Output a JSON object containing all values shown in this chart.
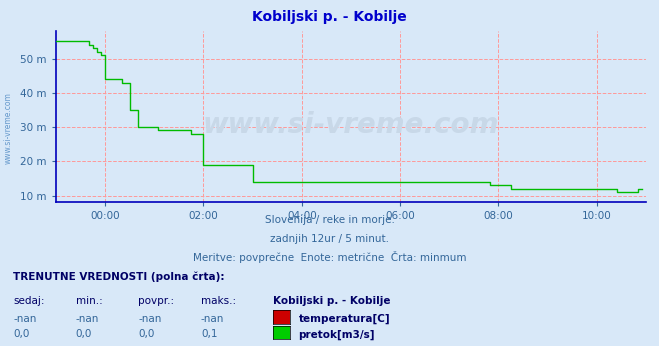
{
  "title": "Kobiljski p. - Kobilje",
  "title_color": "#0000cc",
  "bg_color": "#d8e8f8",
  "plot_bg_color": "#d8e8f8",
  "grid_color": "#ff9999",
  "axis_color": "#0000cc",
  "text_color": "#336699",
  "ylim": [
    8,
    58
  ],
  "yticks": [
    10,
    20,
    30,
    40,
    50
  ],
  "ytick_labels": [
    "10 m",
    "20 m",
    "30 m",
    "40 m",
    "50 m"
  ],
  "xlim": [
    0,
    144
  ],
  "xticks": [
    12,
    36,
    60,
    84,
    108,
    132
  ],
  "xtick_labels": [
    "00:00",
    "02:00",
    "04:00",
    "06:00",
    "08:00",
    "10:00"
  ],
  "watermark_text": "www.si-vreme.com",
  "watermark_color": "#c8d8e8",
  "subtitle1": "Slovenija / reke in morje.",
  "subtitle2": "zadnjih 12ur / 5 minut.",
  "subtitle3": "Meritve: povprečne  Enote: metrične  Črta: minmum",
  "legend_title": "TRENUTNE VREDNOSTI (polna črta):",
  "legend_headers": [
    "sedaj:",
    "min.:",
    "povpr.:",
    "maks.:",
    "Kobiljski p. - Kobilje"
  ],
  "legend_row1": [
    "-nan",
    "-nan",
    "-nan",
    "-nan",
    "temperatura[C]"
  ],
  "legend_row2": [
    "0,0",
    "0,0",
    "0,0",
    "0,1",
    "pretok[m3/s]"
  ],
  "legend_color1": "#cc0000",
  "legend_color2": "#00cc00",
  "flow_data_x": [
    0,
    1,
    2,
    3,
    4,
    5,
    6,
    7,
    8,
    9,
    10,
    11,
    12,
    13,
    14,
    15,
    16,
    17,
    18,
    19,
    20,
    21,
    22,
    23,
    24,
    25,
    26,
    27,
    28,
    29,
    30,
    31,
    32,
    33,
    34,
    35,
    36,
    37,
    38,
    39,
    40,
    41,
    42,
    43,
    44,
    45,
    46,
    47,
    48,
    49,
    50,
    51,
    52,
    53,
    54,
    55,
    56,
    57,
    58,
    59,
    60,
    61,
    62,
    63,
    64,
    65,
    66,
    67,
    68,
    69,
    70,
    71,
    72,
    73,
    74,
    75,
    76,
    77,
    78,
    79,
    80,
    81,
    82,
    83,
    84,
    85,
    86,
    87,
    88,
    89,
    90,
    91,
    92,
    93,
    94,
    95,
    96,
    97,
    98,
    99,
    100,
    101,
    102,
    103,
    104,
    105,
    106,
    107,
    108,
    109,
    110,
    111,
    112,
    113,
    114,
    115,
    116,
    117,
    118,
    119,
    120,
    121,
    122,
    123,
    124,
    125,
    126,
    127,
    128,
    129,
    130,
    131,
    132,
    133,
    134,
    135,
    136,
    137,
    138,
    139,
    140,
    141,
    142,
    143
  ],
  "flow_data_y": [
    55,
    55,
    55,
    55,
    55,
    55,
    55,
    55,
    54,
    53,
    52,
    51,
    44,
    44,
    44,
    44,
    43,
    43,
    35,
    35,
    30,
    30,
    30,
    30,
    30,
    29,
    29,
    29,
    29,
    29,
    29,
    29,
    29,
    28,
    28,
    28,
    19,
    19,
    19,
    19,
    19,
    19,
    19,
    19,
    19,
    19,
    19,
    19,
    14,
    14,
    14,
    14,
    14,
    14,
    14,
    14,
    14,
    14,
    14,
    14,
    14,
    14,
    14,
    14,
    14,
    14,
    14,
    14,
    14,
    14,
    14,
    14,
    14,
    14,
    14,
    14,
    14,
    14,
    14,
    14,
    14,
    14,
    14,
    14,
    14,
    14,
    14,
    14,
    14,
    14,
    14,
    14,
    14,
    14,
    14,
    14,
    14,
    14,
    14,
    14,
    14,
    14,
    14,
    14,
    14,
    14,
    13,
    13,
    13,
    13,
    13,
    12,
    12,
    12,
    12,
    12,
    12,
    12,
    12,
    12,
    12,
    12,
    12,
    12,
    12,
    12,
    12,
    12,
    12,
    12,
    12,
    12,
    12,
    12,
    12,
    12,
    12,
    11,
    11,
    11,
    11,
    11,
    12,
    12
  ],
  "line_color": "#00bb00",
  "axis_spine_color": "#0000bb",
  "sidebar_text": "www.si-vreme.com",
  "sidebar_color": "#6699cc"
}
